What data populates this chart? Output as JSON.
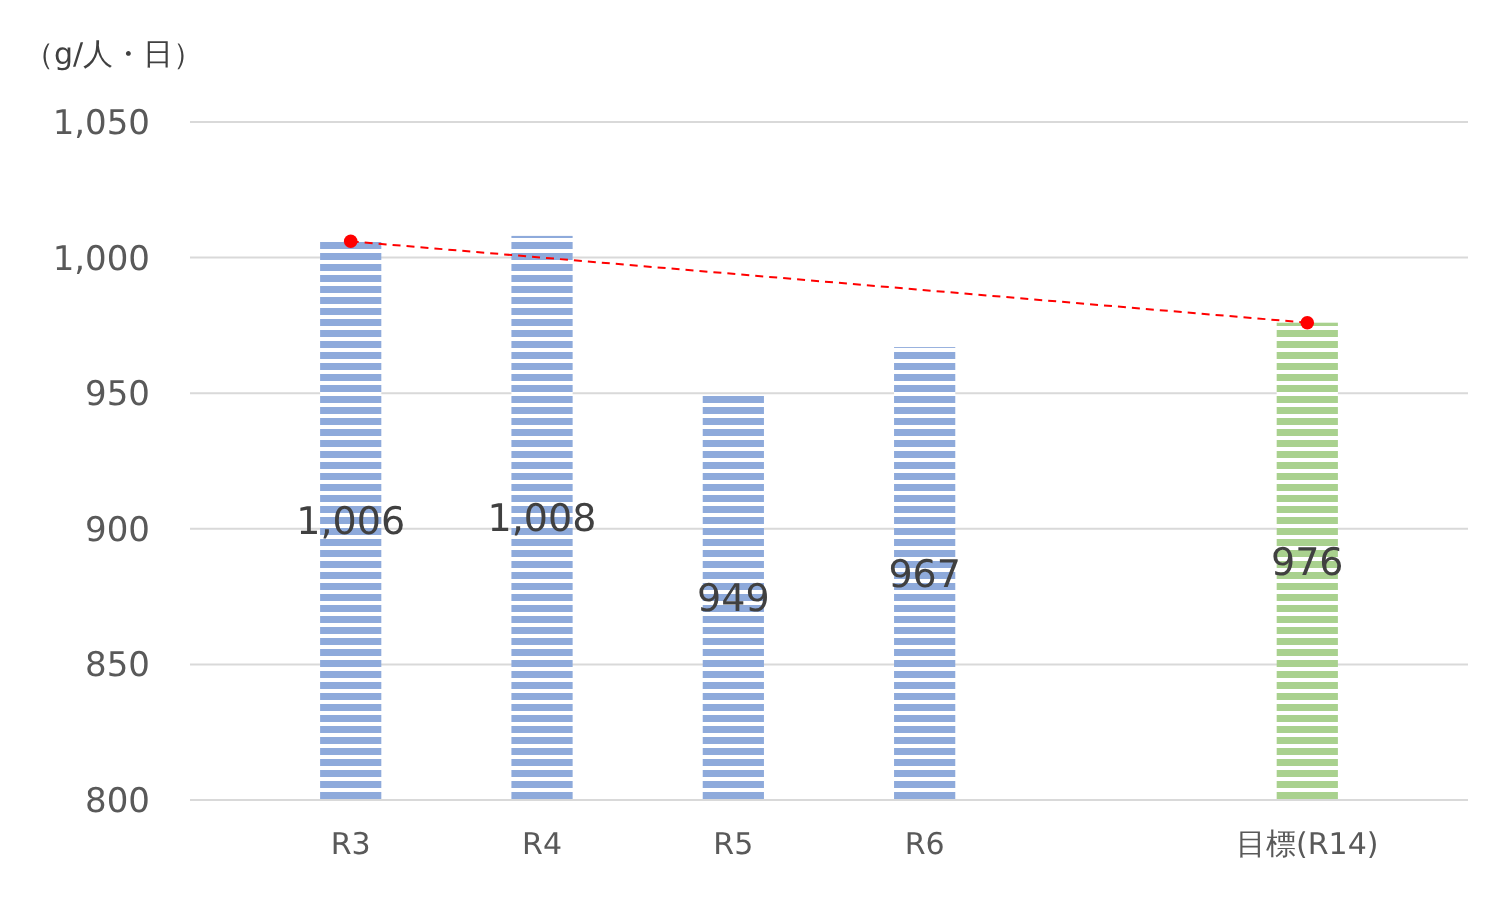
{
  "chart_data": {
    "type": "bar",
    "ylabel": "（g/人・日）",
    "categories": [
      "R3",
      "R4",
      "R5",
      "R6",
      null,
      "目標(R14)"
    ],
    "series": [
      {
        "values": [
          1006,
          1008,
          949,
          967,
          null,
          976
        ],
        "colors": [
          "#8eaadb",
          "#8eaadb",
          "#8eaadb",
          "#8eaadb",
          "#8eaadb",
          "#a9d18e"
        ],
        "value_labels": [
          "1,006",
          "1,008",
          "949",
          "967",
          null,
          "976"
        ]
      },
      {
        "type": "line",
        "x": [
          "R3",
          "目標(R14)"
        ],
        "values": [
          1006,
          976
        ],
        "color": "#ff0000",
        "line_style": "dashed",
        "marker": "circle"
      }
    ],
    "ylim": [
      800,
      1050
    ],
    "yticks": [
      800,
      850,
      900,
      950,
      {
        "value": 1000,
        "label": "1,000"
      },
      {
        "value": 1050,
        "label": "1,050"
      }
    ],
    "grid": "y"
  }
}
